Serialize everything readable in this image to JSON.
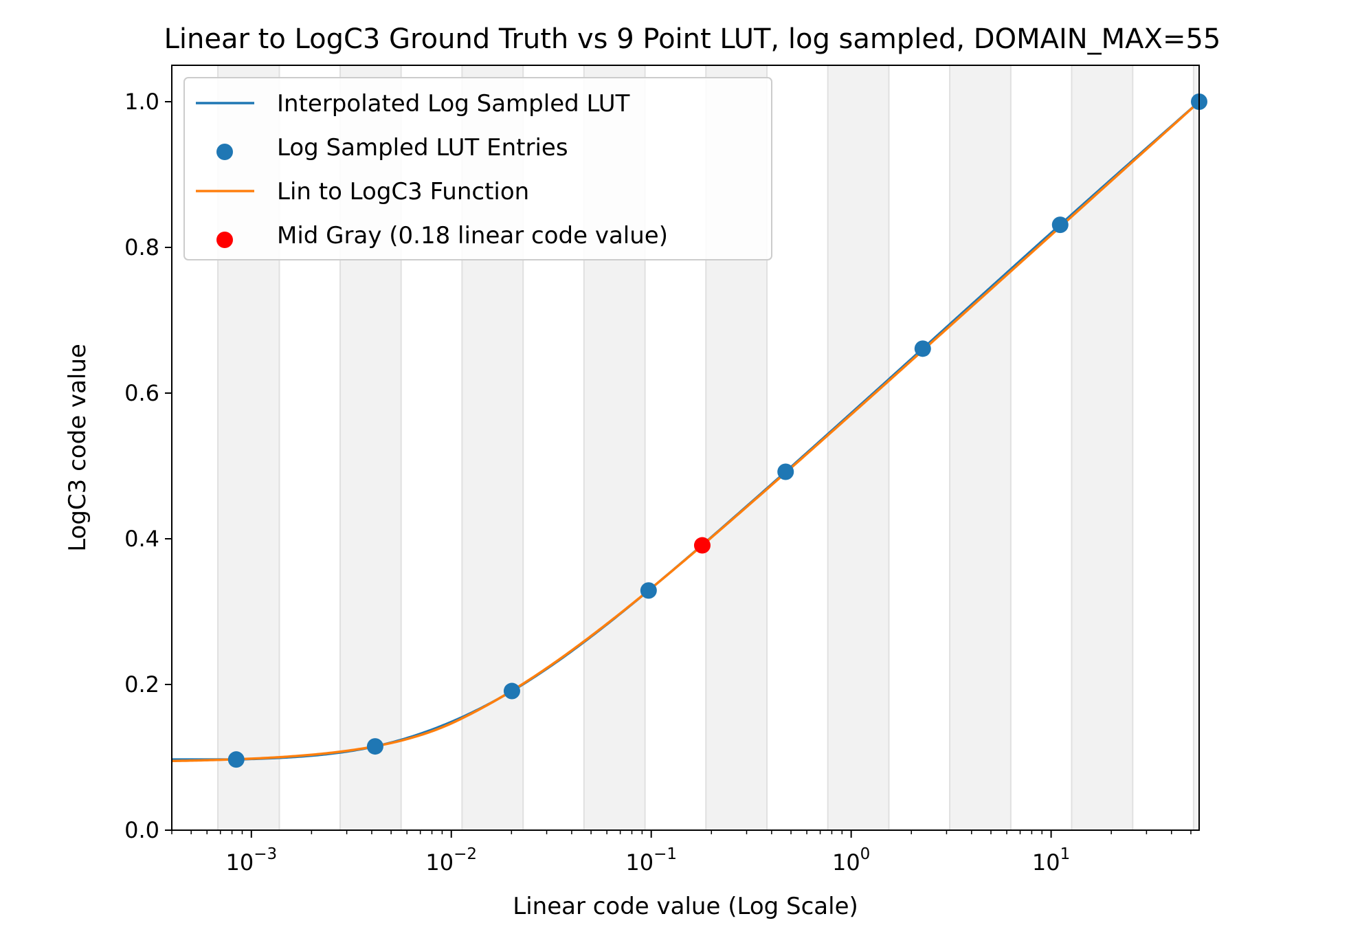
{
  "chart_data": {
    "type": "line",
    "title": "Linear to LogC3 Ground Truth vs 9 Point LUT, log sampled, DOMAIN_MAX=55",
    "xlabel": "Linear code value (Log Scale)",
    "ylabel": "LogC3 code value",
    "x_scale": "log",
    "xlim": [
      0.0004,
      55
    ],
    "ylim": [
      0.0,
      1.05
    ],
    "x_ticks": [
      {
        "value": 0.001,
        "base": "10",
        "exp": "−3"
      },
      {
        "value": 0.01,
        "base": "10",
        "exp": "−2"
      },
      {
        "value": 0.1,
        "base": "10",
        "exp": "−1"
      },
      {
        "value": 1,
        "base": "10",
        "exp": "0"
      },
      {
        "value": 10,
        "base": "10",
        "exp": "1"
      }
    ],
    "y_ticks": [
      "0.0",
      "0.2",
      "0.4",
      "0.6",
      "0.8",
      "1.0"
    ],
    "grid": false,
    "shaded_bands_x": [
      [
        0.00068,
        0.00138
      ],
      [
        0.00278,
        0.00561
      ],
      [
        0.01132,
        0.02286
      ],
      [
        0.04609,
        0.09307
      ],
      [
        0.18768,
        0.37903
      ],
      [
        0.76427,
        1.5433
      ],
      [
        3.1121,
        6.2833
      ],
      [
        12.672,
        25.589
      ],
      [
        51.6,
        55
      ]
    ],
    "legend_position": "upper left",
    "series": [
      {
        "name": "Interpolated Log Sampled LUT",
        "kind": "line",
        "color": "#1f77b4",
        "x": [
          0.00084,
          0.00416,
          0.0201,
          0.097,
          0.47,
          2.28,
          11.1,
          55
        ],
        "y": [
          0.097,
          0.115,
          0.191,
          0.329,
          0.492,
          0.661,
          0.831,
          1.0
        ]
      },
      {
        "name": "Log Sampled LUT Entries",
        "kind": "scatter",
        "color": "#1f77b4",
        "x": [
          0.00084,
          0.00416,
          0.0201,
          0.097,
          0.47,
          2.28,
          11.1,
          55
        ],
        "y": [
          0.097,
          0.115,
          0.191,
          0.329,
          0.492,
          0.661,
          0.831,
          1.0
        ]
      },
      {
        "name": "Lin to LogC3 Function",
        "kind": "line",
        "color": "#ff7f0e"
      },
      {
        "name": "Mid Gray (0.18 linear code value)",
        "kind": "scatter",
        "color": "#ff0000",
        "x": [
          0.18
        ],
        "y": [
          0.391
        ]
      }
    ]
  }
}
